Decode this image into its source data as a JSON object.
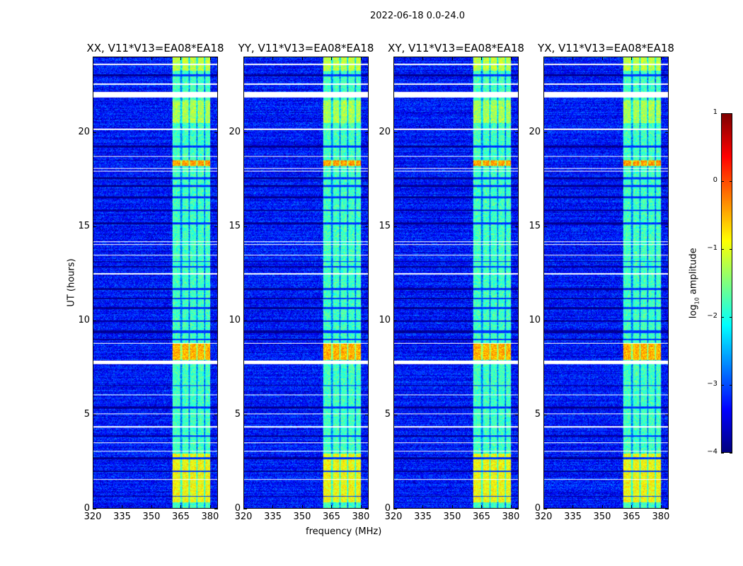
{
  "chart_data": {
    "type": "heatmap",
    "title": "2022-06-18 0.0-24.0",
    "xlabel": "frequency (MHz)",
    "ylabel": "UT (hours)",
    "xlim": [
      320,
      384
    ],
    "ylim": [
      0,
      24
    ],
    "xticks": [
      320,
      335,
      350,
      365,
      380
    ],
    "yticks": [
      0,
      5,
      10,
      15,
      20
    ],
    "panels": [
      {
        "title": "XX, V11*V13=EA08*EA18"
      },
      {
        "title": "YY, V11*V13=EA08*EA18"
      },
      {
        "title": "XY, V11*V13=EA08*EA18"
      },
      {
        "title": "YX, V11*V13=EA08*EA18"
      }
    ],
    "colorbar": {
      "label_main": "log",
      "label_sub": "10",
      "label_rest": " amplitude",
      "range": [
        -4,
        1
      ],
      "ticks": [
        1,
        0,
        -1,
        -2,
        -3,
        -4
      ],
      "tick_labels": [
        "1",
        "0",
        "−1",
        "−2",
        "−3",
        "−4"
      ],
      "colormap": "jet"
    },
    "background_level": -3.3,
    "rfi_band_mhz": [
      361,
      380.5
    ],
    "rfi_band_notches_mhz": [
      365.5,
      369.5,
      373.5,
      377.5
    ],
    "rfi_band_level": -1.8,
    "bright_intervals_hours": [
      [
        0.3,
        2.9,
        -0.9
      ],
      [
        7.9,
        8.8,
        -0.5
      ],
      [
        18.2,
        18.5,
        -0.4
      ],
      [
        23.3,
        24,
        -1.2
      ],
      [
        20.5,
        21.7,
        -1.3
      ]
    ],
    "flagged_intervals_hours": [
      [
        1.5,
        1.55
      ],
      [
        3.0,
        3.05
      ],
      [
        3.45,
        3.5
      ],
      [
        4.3,
        4.35
      ],
      [
        5.0,
        5.05
      ],
      [
        6.0,
        6.05
      ],
      [
        7.65,
        7.85
      ],
      [
        8.75,
        8.8
      ],
      [
        12.45,
        12.5
      ],
      [
        13.45,
        13.5
      ],
      [
        14.0,
        14.05
      ],
      [
        14.15,
        14.2
      ],
      [
        17.9,
        17.95
      ],
      [
        18.05,
        18.1
      ],
      [
        18.7,
        18.75
      ],
      [
        20.15,
        20.2
      ],
      [
        21.85,
        22.15
      ],
      [
        22.55,
        22.6
      ],
      [
        23.6,
        23.65
      ]
    ],
    "dark_intervals_hours": [
      [
        0.6,
        0.65
      ],
      [
        1.9,
        2.0
      ],
      [
        2.6,
        2.7
      ],
      [
        3.8,
        3.85
      ],
      [
        5.3,
        5.4
      ],
      [
        6.5,
        6.55
      ],
      [
        8.95,
        9.0
      ],
      [
        9.3,
        9.45
      ],
      [
        9.9,
        10.0
      ],
      [
        10.6,
        10.7
      ],
      [
        11.1,
        11.2
      ],
      [
        11.6,
        11.7
      ],
      [
        12.8,
        12.9
      ],
      [
        13.1,
        13.15
      ],
      [
        15.1,
        15.2
      ],
      [
        15.8,
        15.9
      ],
      [
        16.5,
        16.6
      ],
      [
        17.1,
        17.2
      ],
      [
        17.5,
        17.6
      ],
      [
        19.2,
        19.3
      ],
      [
        23.0,
        23.1
      ]
    ]
  }
}
